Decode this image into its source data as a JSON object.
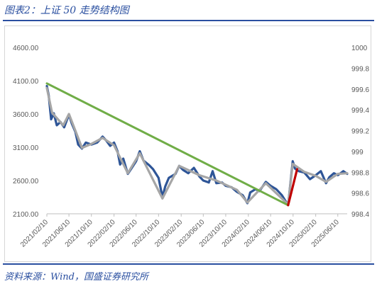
{
  "header": {
    "title": "图表2：上证 50 走势结构图"
  },
  "footer": {
    "source": "资料来源：Wind，国盛证券研究所"
  },
  "colors": {
    "accent": "#2a4fa0",
    "series_main": "#2e5597",
    "series_smooth": "#a6a6a6",
    "trend_green": "#70ad47",
    "trend_red": "#c00000"
  },
  "chart_data": {
    "type": "line",
    "title": "",
    "xlabel": "",
    "ylabel": "",
    "ylim": [
      2100,
      4600
    ],
    "y2lim": [
      998.4,
      1000
    ],
    "grid": false,
    "legend": "none",
    "y_ticks": [
      "4600.00",
      "4100.00",
      "3600.00",
      "3100.00",
      "2600.00",
      "2100.00"
    ],
    "y2_ticks": [
      "1000",
      "999.8",
      "999.6",
      "999.4",
      "999.2",
      "999",
      "998.8",
      "998.6",
      "998.4"
    ],
    "x_ticks": [
      "2021/02/10",
      "2021/06/10",
      "2021/10/10",
      "2022/02/10",
      "2022/06/10",
      "2022/10/10",
      "2023/02/10",
      "2023/06/10",
      "2023/10/10",
      "2024/02/10",
      "2024/06/10",
      "2024/10/10",
      "2025/02/10",
      "2025/06/10"
    ],
    "x_range": [
      "2021/02/10",
      "2025/07/31"
    ],
    "series": [
      {
        "role": "index",
        "color": "#2e5597",
        "points": [
          [
            "2021/02/10",
            4020
          ],
          [
            "2021/02/20",
            3880
          ],
          [
            "2021/03/05",
            3520
          ],
          [
            "2021/03/20",
            3610
          ],
          [
            "2021/04/05",
            3430
          ],
          [
            "2021/04/25",
            3480
          ],
          [
            "2021/05/15",
            3400
          ],
          [
            "2021/06/10",
            3590
          ],
          [
            "2021/06/25",
            3460
          ],
          [
            "2021/07/15",
            3330
          ],
          [
            "2021/07/30",
            3140
          ],
          [
            "2021/08/20",
            3080
          ],
          [
            "2021/09/10",
            3170
          ],
          [
            "2021/10/10",
            3140
          ],
          [
            "2021/11/10",
            3170
          ],
          [
            "2021/12/10",
            3260
          ],
          [
            "2021/12/30",
            3200
          ],
          [
            "2022/01/20",
            3120
          ],
          [
            "2022/02/10",
            3170
          ],
          [
            "2022/03/01",
            3040
          ],
          [
            "2022/03/15",
            2840
          ],
          [
            "2022/04/01",
            2930
          ],
          [
            "2022/04/26",
            2700
          ],
          [
            "2022/05/15",
            2780
          ],
          [
            "2022/06/10",
            2890
          ],
          [
            "2022/06/30",
            3040
          ],
          [
            "2022/07/20",
            2900
          ],
          [
            "2022/08/20",
            2830
          ],
          [
            "2022/09/10",
            2770
          ],
          [
            "2022/10/10",
            2640
          ],
          [
            "2022/10/31",
            2350
          ],
          [
            "2022/11/15",
            2510
          ],
          [
            "2022/12/05",
            2640
          ],
          [
            "2023/01/10",
            2700
          ],
          [
            "2023/01/30",
            2820
          ],
          [
            "2023/02/20",
            2760
          ],
          [
            "2023/03/20",
            2710
          ],
          [
            "2023/04/20",
            2790
          ],
          [
            "2023/05/20",
            2660
          ],
          [
            "2023/06/10",
            2600
          ],
          [
            "2023/07/10",
            2570
          ],
          [
            "2023/07/31",
            2740
          ],
          [
            "2023/08/20",
            2560
          ],
          [
            "2023/09/20",
            2570
          ],
          [
            "2023/10/10",
            2520
          ],
          [
            "2023/11/10",
            2500
          ],
          [
            "2023/12/10",
            2430
          ],
          [
            "2024/01/10",
            2380
          ],
          [
            "2024/02/05",
            2260
          ],
          [
            "2024/02/20",
            2420
          ],
          [
            "2024/03/20",
            2470
          ],
          [
            "2024/04/10",
            2440
          ],
          [
            "2024/05/15",
            2580
          ],
          [
            "2024/06/10",
            2520
          ],
          [
            "2024/07/10",
            2470
          ],
          [
            "2024/08/10",
            2380
          ],
          [
            "2024/09/13",
            2230
          ],
          [
            "2024/10/08",
            2890
          ],
          [
            "2024/10/20",
            2780
          ],
          [
            "2024/11/10",
            2740
          ],
          [
            "2024/12/10",
            2720
          ],
          [
            "2025/01/10",
            2620
          ],
          [
            "2025/02/10",
            2680
          ],
          [
            "2025/03/10",
            2740
          ],
          [
            "2025/04/07",
            2560
          ],
          [
            "2025/04/25",
            2650
          ],
          [
            "2025/05/20",
            2710
          ],
          [
            "2025/06/10",
            2680
          ],
          [
            "2025/07/10",
            2740
          ],
          [
            "2025/07/31",
            2700
          ]
        ]
      },
      {
        "role": "smoothed",
        "color": "#a6a6a6",
        "points": [
          [
            "2021/02/10",
            3990
          ],
          [
            "2021/03/10",
            3620
          ],
          [
            "2021/05/10",
            3430
          ],
          [
            "2021/06/10",
            3600
          ],
          [
            "2021/08/20",
            3090
          ],
          [
            "2021/10/10",
            3150
          ],
          [
            "2021/12/10",
            3240
          ],
          [
            "2022/02/10",
            3130
          ],
          [
            "2022/04/26",
            2710
          ],
          [
            "2022/06/30",
            3010
          ],
          [
            "2022/10/31",
            2330
          ],
          [
            "2023/01/30",
            2820
          ],
          [
            "2023/05/20",
            2680
          ],
          [
            "2023/08/20",
            2600
          ],
          [
            "2023/12/10",
            2460
          ],
          [
            "2024/02/05",
            2270
          ],
          [
            "2024/05/15",
            2560
          ],
          [
            "2024/09/13",
            2240
          ],
          [
            "2024/10/08",
            2850
          ],
          [
            "2024/12/10",
            2730
          ],
          [
            "2025/02/10",
            2670
          ],
          [
            "2025/04/07",
            2580
          ],
          [
            "2025/06/10",
            2700
          ],
          [
            "2025/07/31",
            2710
          ]
        ]
      },
      {
        "role": "trend-down",
        "color": "#70ad47",
        "points": [
          [
            "2021/02/10",
            4060
          ],
          [
            "2024/09/13",
            2230
          ]
        ]
      },
      {
        "role": "trend-up",
        "color": "#c00000",
        "points": [
          [
            "2024/09/13",
            2230
          ],
          [
            "2024/11/01",
            2770
          ]
        ]
      }
    ]
  }
}
